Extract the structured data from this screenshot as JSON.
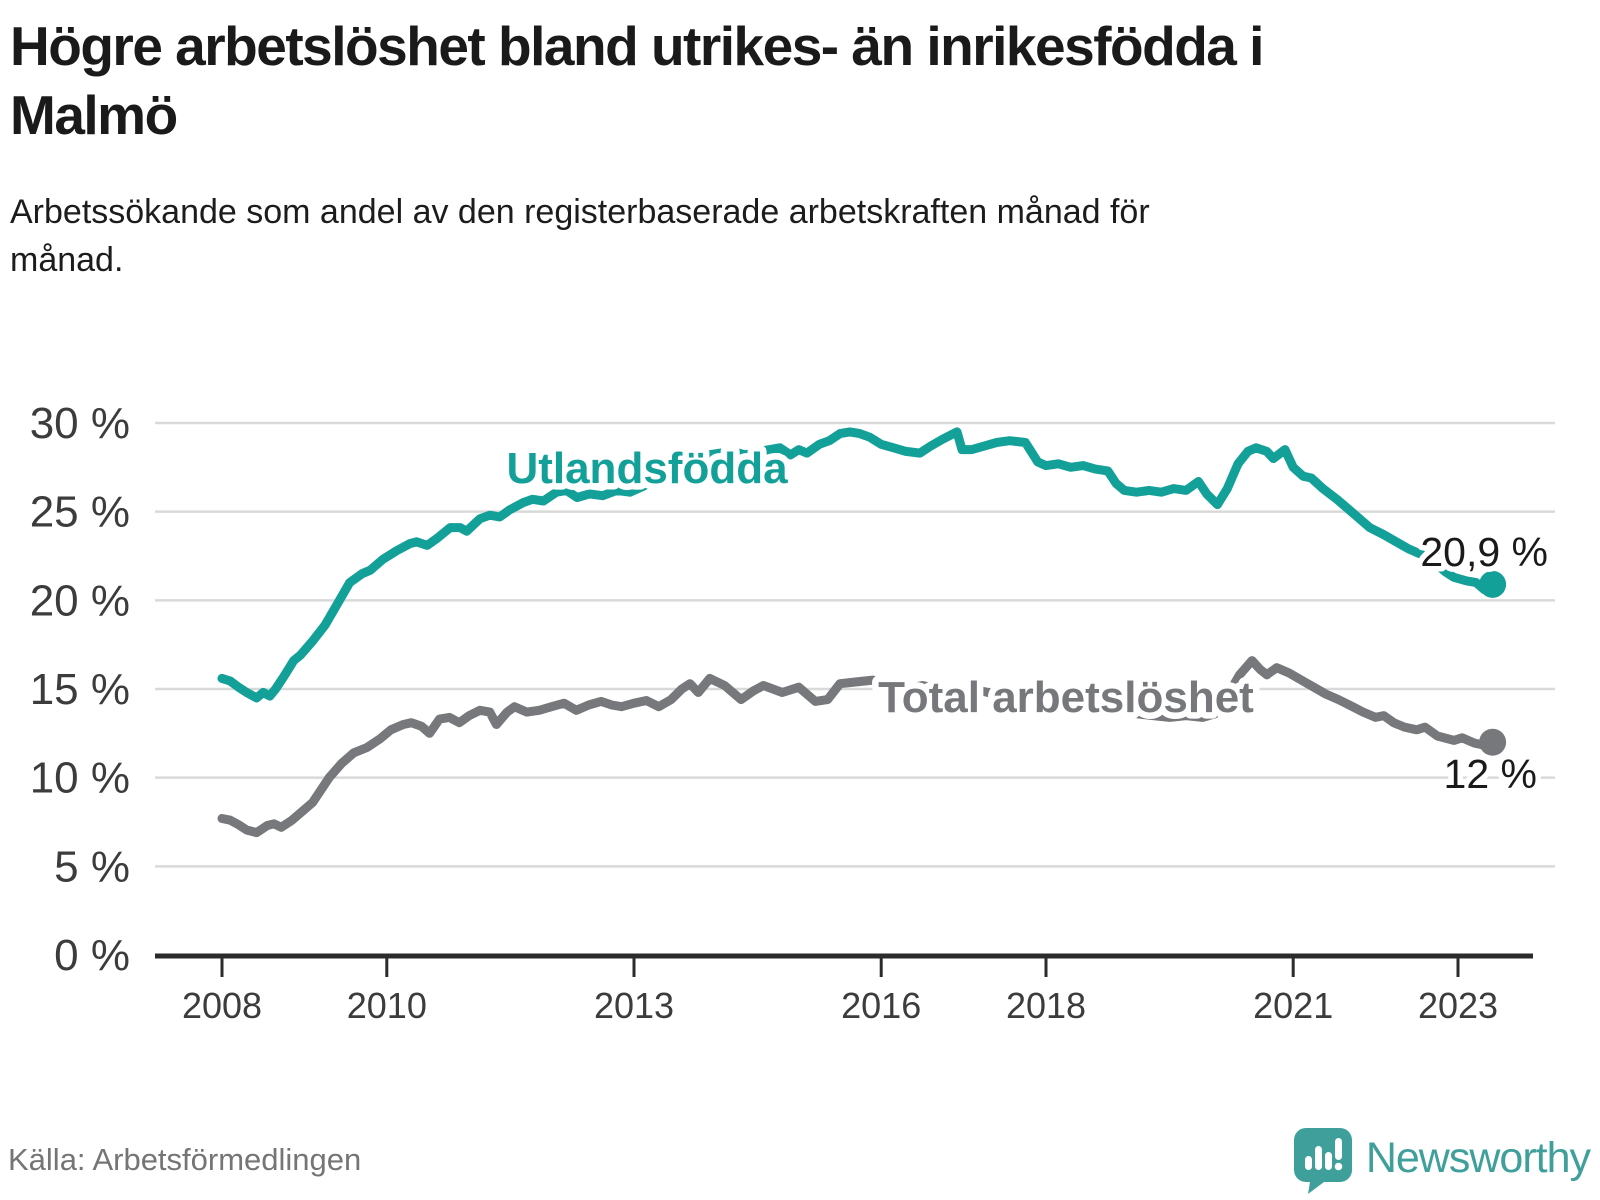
{
  "header": {
    "title": "Högre arbetslöshet bland utrikes- än inrikesfödda i Malmö",
    "subtitle": "Arbetssökande som andel av den registerbaserade arbetskraften månad för månad."
  },
  "footer": {
    "source": "Källa: Arbetsförmedlingen",
    "brand": "Newsworthy"
  },
  "colors": {
    "teal_line": "#12A099",
    "gray_line": "#77787B",
    "value_text": "#1A1A1A",
    "axis_text": "#3C3C3C",
    "gridline": "#D9D9D9",
    "axis_line": "#2B2B2B",
    "source_text": "#757575",
    "brand_teal": "#3FA09B"
  },
  "chart_data": {
    "type": "line",
    "title": "Högre arbetslöshet bland utrikes- än inrikesfödda i Malmö",
    "subtitle": "Arbetssökande som andel av den registerbaserade arbetskraften månad för månad.",
    "xlabel": "",
    "ylabel": "",
    "grid": true,
    "xlim": [
      2007.9,
      2023.75
    ],
    "ylim": [
      0,
      30
    ],
    "x_ticks": [
      {
        "value": 2008,
        "label": "2008"
      },
      {
        "value": 2010,
        "label": "2010"
      },
      {
        "value": 2013,
        "label": "2013"
      },
      {
        "value": 2016,
        "label": "2016"
      },
      {
        "value": 2018,
        "label": "2018"
      },
      {
        "value": 2021,
        "label": "2021"
      },
      {
        "value": 2023,
        "label": "2023"
      }
    ],
    "y_ticks": [
      {
        "value": 0,
        "label": "0 %"
      },
      {
        "value": 5,
        "label": "5 %"
      },
      {
        "value": 10,
        "label": "10 %"
      },
      {
        "value": 15,
        "label": "15 %"
      },
      {
        "value": 20,
        "label": "20 %"
      },
      {
        "value": 25,
        "label": "25 %"
      },
      {
        "value": 30,
        "label": "30 %"
      }
    ],
    "series": [
      {
        "name": "Utlandsfödda",
        "color": "#12A099",
        "end_label": "20,9 %",
        "end_value": 20.9,
        "points": [
          [
            2008.0,
            15.6
          ],
          [
            2008.1,
            15.45
          ],
          [
            2008.2,
            15.1
          ],
          [
            2008.3,
            14.8
          ],
          [
            2008.42,
            14.5
          ],
          [
            2008.5,
            14.8
          ],
          [
            2008.58,
            14.6
          ],
          [
            2008.65,
            15.0
          ],
          [
            2008.75,
            15.7
          ],
          [
            2008.87,
            16.6
          ],
          [
            2008.95,
            16.9
          ],
          [
            2009.1,
            17.7
          ],
          [
            2009.25,
            18.6
          ],
          [
            2009.4,
            19.8
          ],
          [
            2009.55,
            21.0
          ],
          [
            2009.7,
            21.5
          ],
          [
            2009.8,
            21.7
          ],
          [
            2009.95,
            22.3
          ],
          [
            2010.12,
            22.8
          ],
          [
            2010.28,
            23.2
          ],
          [
            2010.36,
            23.3
          ],
          [
            2010.49,
            23.1
          ],
          [
            2010.61,
            23.5
          ],
          [
            2010.77,
            24.1
          ],
          [
            2010.89,
            24.1
          ],
          [
            2010.97,
            23.9
          ],
          [
            2011.13,
            24.6
          ],
          [
            2011.25,
            24.8
          ],
          [
            2011.37,
            24.7
          ],
          [
            2011.49,
            25.1
          ],
          [
            2011.65,
            25.5
          ],
          [
            2011.77,
            25.7
          ],
          [
            2011.9,
            25.6
          ],
          [
            2012.06,
            26.1
          ],
          [
            2012.18,
            26.2
          ],
          [
            2012.31,
            25.8
          ],
          [
            2012.46,
            26.0
          ],
          [
            2012.62,
            25.9
          ],
          [
            2012.79,
            26.2
          ],
          [
            2012.95,
            26.1
          ],
          [
            2013.1,
            26.4
          ],
          [
            2013.3,
            26.9
          ],
          [
            2013.5,
            27.4
          ],
          [
            2013.7,
            27.9
          ],
          [
            2013.9,
            28.2
          ],
          [
            2014.05,
            28.3
          ],
          [
            2014.2,
            28.4
          ],
          [
            2014.35,
            28.2
          ],
          [
            2014.5,
            28.4
          ],
          [
            2014.65,
            28.5
          ],
          [
            2014.77,
            28.6
          ],
          [
            2014.9,
            28.2
          ],
          [
            2015.0,
            28.5
          ],
          [
            2015.1,
            28.3
          ],
          [
            2015.25,
            28.8
          ],
          [
            2015.37,
            29.0
          ],
          [
            2015.5,
            29.4
          ],
          [
            2015.62,
            29.5
          ],
          [
            2015.74,
            29.4
          ],
          [
            2015.86,
            29.2
          ],
          [
            2016.0,
            28.8
          ],
          [
            2016.15,
            28.6
          ],
          [
            2016.3,
            28.4
          ],
          [
            2016.47,
            28.3
          ],
          [
            2016.6,
            28.7
          ],
          [
            2016.75,
            29.1
          ],
          [
            2016.92,
            29.5
          ],
          [
            2016.98,
            28.5
          ],
          [
            2017.1,
            28.5
          ],
          [
            2017.25,
            28.7
          ],
          [
            2017.4,
            28.9
          ],
          [
            2017.56,
            29.0
          ],
          [
            2017.75,
            28.9
          ],
          [
            2017.9,
            27.8
          ],
          [
            2018.0,
            27.6
          ],
          [
            2018.15,
            27.7
          ],
          [
            2018.3,
            27.5
          ],
          [
            2018.45,
            27.6
          ],
          [
            2018.6,
            27.4
          ],
          [
            2018.75,
            27.3
          ],
          [
            2018.85,
            26.6
          ],
          [
            2018.95,
            26.2
          ],
          [
            2019.1,
            26.1
          ],
          [
            2019.25,
            26.2
          ],
          [
            2019.4,
            26.1
          ],
          [
            2019.55,
            26.3
          ],
          [
            2019.7,
            26.2
          ],
          [
            2019.85,
            26.7
          ],
          [
            2019.95,
            26.0
          ],
          [
            2020.08,
            25.4
          ],
          [
            2020.2,
            26.3
          ],
          [
            2020.33,
            27.7
          ],
          [
            2020.45,
            28.4
          ],
          [
            2020.55,
            28.6
          ],
          [
            2020.68,
            28.4
          ],
          [
            2020.76,
            28.0
          ],
          [
            2020.9,
            28.5
          ],
          [
            2021.0,
            27.5
          ],
          [
            2021.12,
            27.0
          ],
          [
            2021.22,
            26.9
          ],
          [
            2021.36,
            26.3
          ],
          [
            2021.53,
            25.7
          ],
          [
            2021.73,
            24.9
          ],
          [
            2021.93,
            24.1
          ],
          [
            2022.1,
            23.7
          ],
          [
            2022.25,
            23.3
          ],
          [
            2022.4,
            22.9
          ],
          [
            2022.55,
            22.6
          ],
          [
            2022.7,
            22.2
          ],
          [
            2022.85,
            21.6
          ],
          [
            2022.95,
            21.3
          ],
          [
            2023.1,
            21.1
          ],
          [
            2023.22,
            21.0
          ],
          [
            2023.32,
            20.6
          ],
          [
            2023.42,
            20.9
          ]
        ]
      },
      {
        "name": "Total arbetslöshet",
        "color": "#77787B",
        "end_label": "12 %",
        "end_value": 12.0,
        "points": [
          [
            2008.0,
            7.7
          ],
          [
            2008.1,
            7.6
          ],
          [
            2008.2,
            7.35
          ],
          [
            2008.3,
            7.05
          ],
          [
            2008.42,
            6.9
          ],
          [
            2008.55,
            7.3
          ],
          [
            2008.63,
            7.4
          ],
          [
            2008.72,
            7.2
          ],
          [
            2008.85,
            7.6
          ],
          [
            2008.95,
            8.0
          ],
          [
            2009.1,
            8.6
          ],
          [
            2009.3,
            10.0
          ],
          [
            2009.45,
            10.8
          ],
          [
            2009.6,
            11.4
          ],
          [
            2009.76,
            11.7
          ],
          [
            2009.92,
            12.2
          ],
          [
            2010.05,
            12.7
          ],
          [
            2010.2,
            13.0
          ],
          [
            2010.3,
            13.1
          ],
          [
            2010.42,
            12.9
          ],
          [
            2010.52,
            12.5
          ],
          [
            2010.64,
            13.3
          ],
          [
            2010.76,
            13.4
          ],
          [
            2010.88,
            13.1
          ],
          [
            2011.0,
            13.5
          ],
          [
            2011.13,
            13.8
          ],
          [
            2011.25,
            13.7
          ],
          [
            2011.33,
            13.0
          ],
          [
            2011.46,
            13.7
          ],
          [
            2011.55,
            14.0
          ],
          [
            2011.7,
            13.7
          ],
          [
            2011.85,
            13.8
          ],
          [
            2012.0,
            14.0
          ],
          [
            2012.15,
            14.2
          ],
          [
            2012.3,
            13.8
          ],
          [
            2012.45,
            14.1
          ],
          [
            2012.6,
            14.3
          ],
          [
            2012.73,
            14.1
          ],
          [
            2012.85,
            14.0
          ],
          [
            2013.0,
            14.2
          ],
          [
            2013.15,
            14.35
          ],
          [
            2013.3,
            14.0
          ],
          [
            2013.45,
            14.4
          ],
          [
            2013.58,
            15.0
          ],
          [
            2013.68,
            15.3
          ],
          [
            2013.78,
            14.8
          ],
          [
            2013.92,
            15.6
          ],
          [
            2014.1,
            15.2
          ],
          [
            2014.3,
            14.4
          ],
          [
            2014.45,
            14.9
          ],
          [
            2014.57,
            15.2
          ],
          [
            2014.8,
            14.8
          ],
          [
            2015.0,
            15.1
          ],
          [
            2015.2,
            14.3
          ],
          [
            2015.35,
            14.4
          ],
          [
            2015.5,
            15.3
          ],
          [
            2015.7,
            15.4
          ],
          [
            2015.9,
            15.5
          ],
          [
            2016.1,
            15.2
          ],
          [
            2016.3,
            15.0
          ],
          [
            2016.5,
            15.2
          ],
          [
            2016.7,
            15.0
          ],
          [
            2016.9,
            14.9
          ],
          [
            2017.1,
            15.0
          ],
          [
            2017.3,
            14.8
          ],
          [
            2017.5,
            14.7
          ],
          [
            2017.7,
            14.9
          ],
          [
            2017.9,
            14.7
          ],
          [
            2018.1,
            14.5
          ],
          [
            2018.3,
            14.3
          ],
          [
            2018.5,
            14.2
          ],
          [
            2018.7,
            14.0
          ],
          [
            2018.9,
            13.8
          ],
          [
            2019.1,
            13.6
          ],
          [
            2019.3,
            13.5
          ],
          [
            2019.5,
            13.4
          ],
          [
            2019.7,
            13.5
          ],
          [
            2019.9,
            13.4
          ],
          [
            2020.05,
            13.6
          ],
          [
            2020.2,
            14.6
          ],
          [
            2020.35,
            15.8
          ],
          [
            2020.5,
            16.6
          ],
          [
            2020.6,
            16.1
          ],
          [
            2020.68,
            15.8
          ],
          [
            2020.8,
            16.2
          ],
          [
            2020.95,
            15.9
          ],
          [
            2021.1,
            15.5
          ],
          [
            2021.25,
            15.1
          ],
          [
            2021.4,
            14.7
          ],
          [
            2021.55,
            14.4
          ],
          [
            2021.7,
            14.05
          ],
          [
            2021.85,
            13.7
          ],
          [
            2022.0,
            13.4
          ],
          [
            2022.1,
            13.5
          ],
          [
            2022.22,
            13.1
          ],
          [
            2022.35,
            12.85
          ],
          [
            2022.5,
            12.7
          ],
          [
            2022.6,
            12.85
          ],
          [
            2022.75,
            12.35
          ],
          [
            2022.95,
            12.1
          ],
          [
            2023.05,
            12.25
          ],
          [
            2023.2,
            11.95
          ],
          [
            2023.3,
            11.85
          ],
          [
            2023.42,
            12.0
          ]
        ]
      }
    ],
    "legend_position": "inline-labels"
  }
}
